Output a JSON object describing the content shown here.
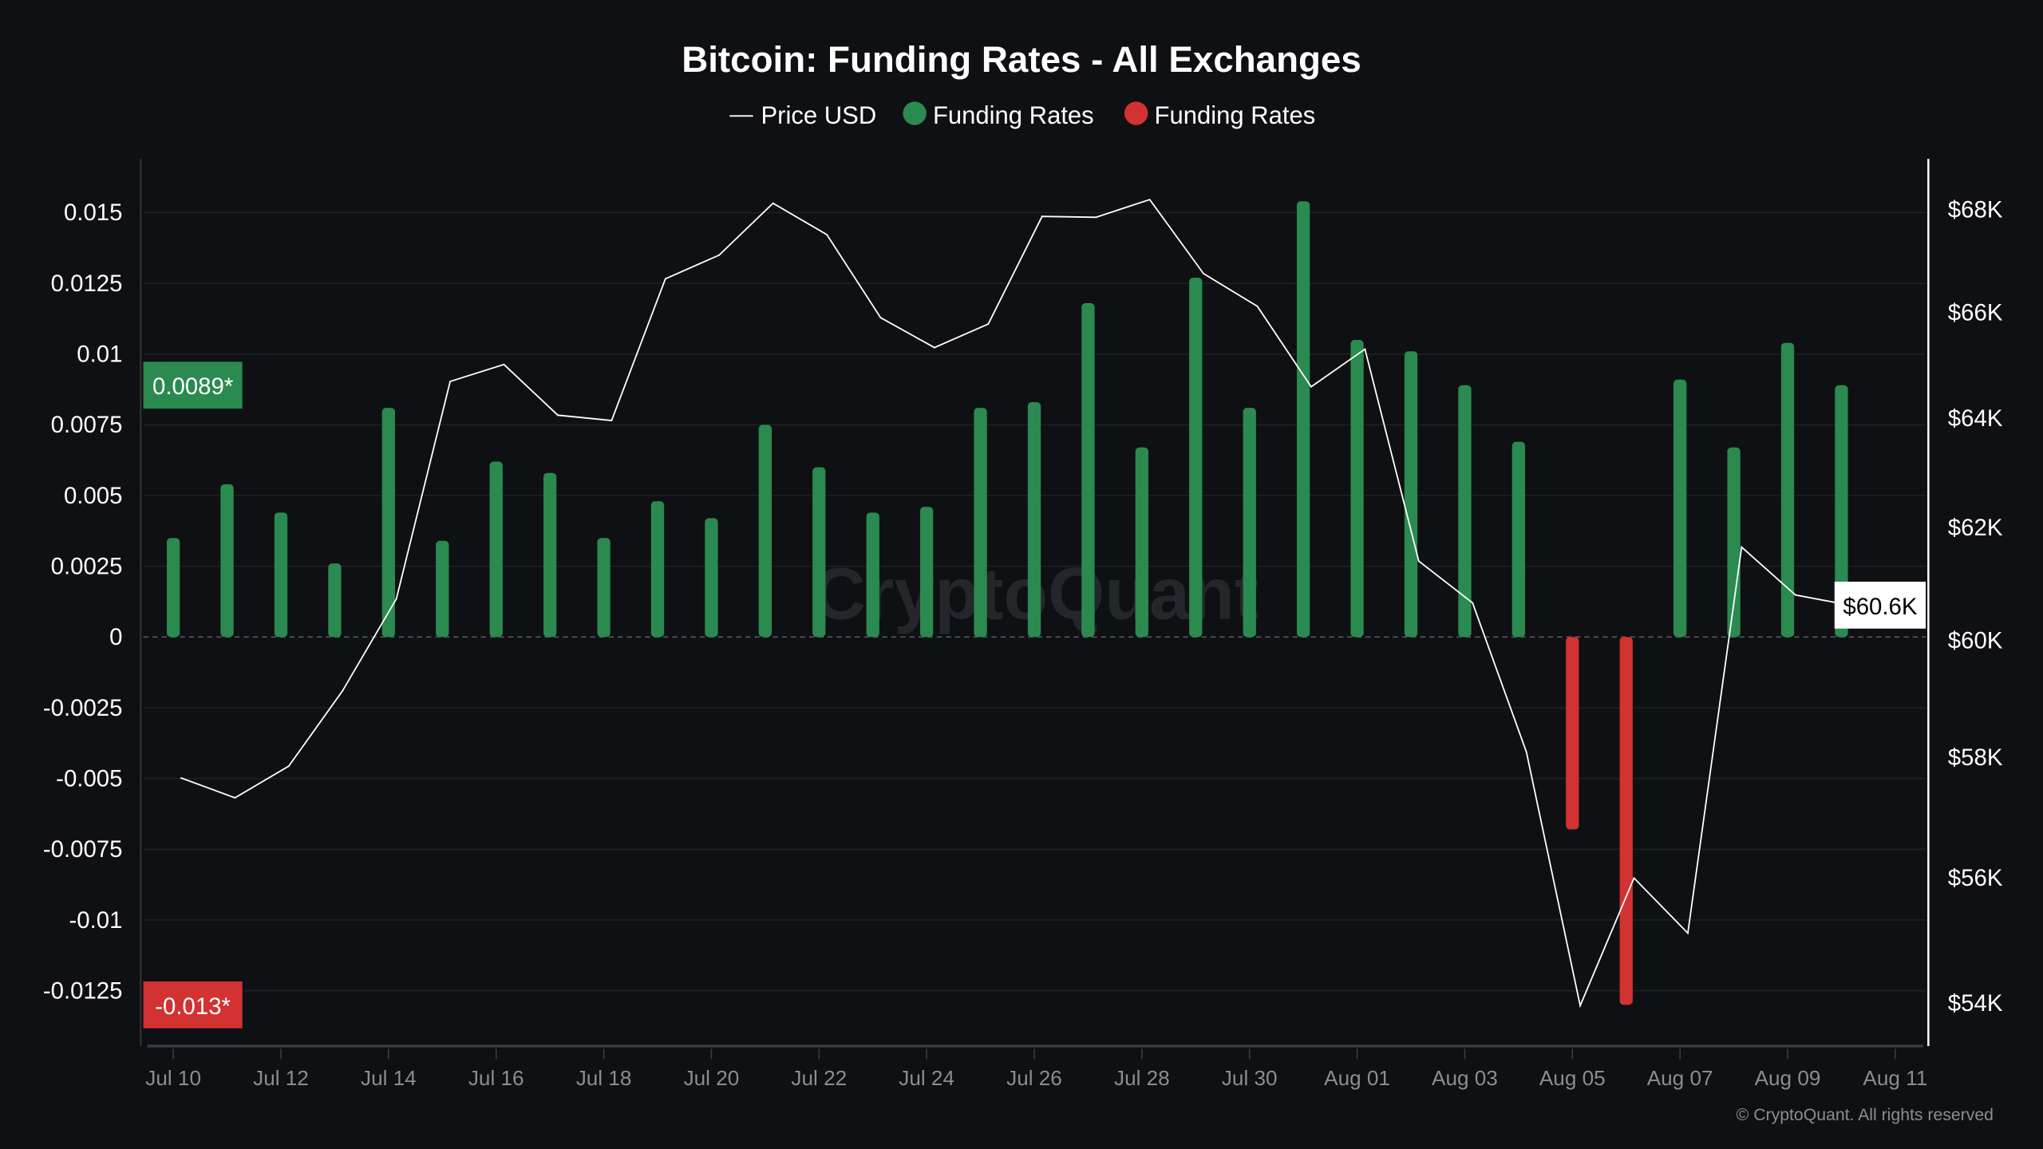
{
  "chart_data": {
    "type": "bar",
    "title": "Bitcoin: Funding Rates - All Exchanges",
    "legend": {
      "placement": "top-center",
      "items": [
        {
          "label": "Price USD",
          "color": "#ffffff",
          "marker": "line"
        },
        {
          "label": "Funding Rates",
          "color": "#2a8a4f",
          "marker": "circle"
        },
        {
          "label": "Funding Rates",
          "color": "#d23232",
          "marker": "circle"
        }
      ]
    },
    "categories": [
      "Jul 10",
      "Jul 11",
      "Jul 12",
      "Jul 13",
      "Jul 14",
      "Jul 15",
      "Jul 16",
      "Jul 17",
      "Jul 18",
      "Jul 19",
      "Jul 20",
      "Jul 21",
      "Jul 22",
      "Jul 23",
      "Jul 24",
      "Jul 25",
      "Jul 26",
      "Jul 27",
      "Jul 28",
      "Jul 29",
      "Jul 30",
      "Jul 31",
      "Aug 01",
      "Aug 02",
      "Aug 03",
      "Aug 04",
      "Aug 05",
      "Aug 06",
      "Aug 07",
      "Aug 08",
      "Aug 09",
      "Aug 10"
    ],
    "series": [
      {
        "name": "Funding Rates",
        "type": "bar",
        "axis": "left",
        "positive_color": "#2a8a4f",
        "negative_color": "#d23232",
        "values": [
          0.0035,
          0.0054,
          0.0044,
          0.0026,
          0.0081,
          0.0034,
          0.0062,
          0.0058,
          0.0035,
          0.0048,
          0.0042,
          0.0075,
          0.006,
          0.0044,
          0.0046,
          0.0081,
          0.0083,
          0.0118,
          0.0067,
          0.0127,
          0.0081,
          0.0154,
          0.0105,
          0.0101,
          0.0089,
          0.0069,
          -0.0068,
          -0.013,
          0.0091,
          0.0067,
          0.0104,
          0.0089
        ]
      },
      {
        "name": "Price USD",
        "type": "line",
        "axis": "right",
        "color": "#ffffff",
        "values": [
          57650,
          57320,
          57850,
          59130,
          60730,
          64690,
          65010,
          64060,
          63960,
          66650,
          67110,
          68130,
          67510,
          65900,
          65330,
          65780,
          67870,
          67850,
          68200,
          66750,
          66120,
          64590,
          65300,
          61400,
          60660,
          58090,
          53960,
          56000,
          55110,
          61650,
          60800,
          60620
        ]
      }
    ],
    "x_ticks": [
      "Jul 10",
      "Jul 12",
      "Jul 14",
      "Jul 16",
      "Jul 18",
      "Jul 20",
      "Jul 22",
      "Jul 24",
      "Jul 26",
      "Jul 28",
      "Jul 30",
      "Aug 01",
      "Aug 03",
      "Aug 05",
      "Aug 07",
      "Aug 09",
      "Aug 11"
    ],
    "y_left": {
      "ticks": [
        "0.015",
        "0.0125",
        "0.01",
        "0.0075",
        "0.005",
        "0.0025",
        "0",
        "-0.0025",
        "-0.005",
        "-0.0075",
        "-0.01",
        "-0.0125"
      ],
      "tick_values": [
        0.015,
        0.0125,
        0.01,
        0.0075,
        0.005,
        0.0025,
        0,
        -0.0025,
        -0.005,
        -0.0075,
        -0.01,
        -0.0125
      ],
      "ylim": [
        -0.0145,
        0.0168
      ],
      "scale": "linear"
    },
    "y_right": {
      "ticks": [
        "$68K",
        "$66K",
        "$64K",
        "$62K",
        "$60K",
        "$58K",
        "$56K",
        "$54K"
      ],
      "tick_values": [
        68000,
        66000,
        64000,
        62000,
        60000,
        58000,
        56000,
        54000
      ],
      "scale": "log"
    },
    "markers": {
      "left_positive": {
        "label": "0.0089*",
        "value": 0.0089,
        "color": "#2a8a4f"
      },
      "left_negative": {
        "label": "-0.013*",
        "value": -0.013,
        "color": "#d23232"
      },
      "right_price": {
        "label": "$60.6K",
        "value": 60620
      }
    },
    "grid": true,
    "watermark": "CryptoQuant",
    "footer": "© CryptoQuant. All rights reserved"
  }
}
